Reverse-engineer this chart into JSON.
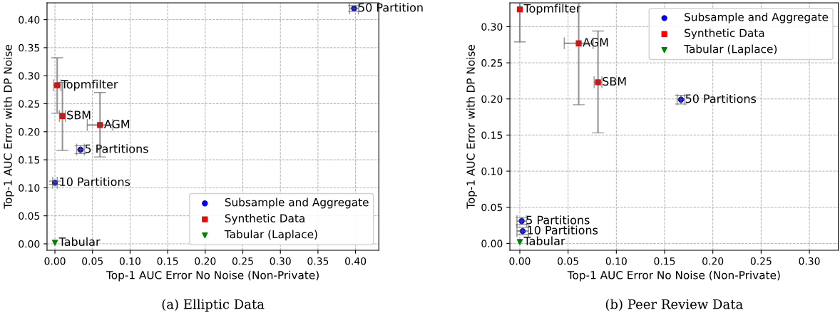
{
  "chart_data": [
    {
      "type": "scatter",
      "xlabel": "Top-1 AUC Error No Noise (Non-Private)",
      "ylabel": "Top-1 AUC Error with DP Noise",
      "grid": true,
      "legend": "bottom right",
      "xlim": [
        -0.0105,
        0.431
      ],
      "ylim": [
        -0.0115,
        0.43
      ],
      "xticks": [
        {
          "value": 0,
          "label": "0.00"
        },
        {
          "value": 0.05,
          "label": "0.05"
        },
        {
          "value": 0.1,
          "label": "0.10"
        },
        {
          "value": 0.15,
          "label": "0.15"
        },
        {
          "value": 0.2,
          "label": "0.20"
        },
        {
          "value": 0.25,
          "label": "0.25"
        },
        {
          "value": 0.3,
          "label": "0.30"
        },
        {
          "value": 0.35,
          "label": "0.35"
        },
        {
          "value": 0.4,
          "label": "0.40"
        }
      ],
      "yticks": [
        {
          "value": 0,
          "label": "0.00"
        },
        {
          "value": 0.05,
          "label": "0.05"
        },
        {
          "value": 0.1,
          "label": "0.10"
        },
        {
          "value": 0.15,
          "label": "0.15"
        },
        {
          "value": 0.2,
          "label": "0.20"
        },
        {
          "value": 0.25,
          "label": "0.25"
        },
        {
          "value": 0.3,
          "label": "0.30"
        },
        {
          "value": 0.35,
          "label": "0.35"
        },
        {
          "value": 0.4,
          "label": "0.40"
        }
      ],
      "series": [
        {
          "name": "Subsample and Aggregate",
          "color": "#0000ff",
          "marker": "circle",
          "x": [
            0.398,
            0.034,
            0.0
          ],
          "values": [
            0.42,
            0.168,
            0.109
          ],
          "errors": [
            0.005,
            0.007,
            0.003
          ],
          "xerrors": [
            0.006,
            0.005,
            0.003
          ]
        },
        {
          "name": "Synthetic Data",
          "color": "#ff0000",
          "marker": "square",
          "x": [
            0.003,
            0.01,
            0.06
          ],
          "values": [
            0.283,
            0.228,
            0.212
          ],
          "errors": [
            [
              0.233,
              0.332
            ],
            [
              0.167,
              0.288
            ],
            [
              0.155,
              0.27
            ]
          ],
          "xerrors": [
            0.005,
            0.004,
            0.017
          ]
        },
        {
          "name": "Tabular (Laplace)",
          "color": "#008000",
          "marker": "triangle",
          "x": [
            0.0
          ],
          "values": [
            0.002
          ],
          "errors": [
            null
          ],
          "xerrors": [
            null
          ]
        }
      ],
      "annotations": [
        {
          "text": "50 Partition",
          "x": 0.398,
          "y": 0.42
        },
        {
          "text": "5 Partitions",
          "x": 0.034,
          "y": 0.168
        },
        {
          "text": "10 Partitions",
          "x": 0.0,
          "y": 0.109
        },
        {
          "text": "Topmfilter",
          "x": 0.003,
          "y": 0.283
        },
        {
          "text": "SBM",
          "x": 0.01,
          "y": 0.228
        },
        {
          "text": "AGM",
          "x": 0.06,
          "y": 0.212
        },
        {
          "text": "Tabular",
          "x": 0.0,
          "y": 0.002
        },
        "(a) Elliptic Data"
      ]
    },
    {
      "type": "scatter",
      "xlabel": "Top-1 AUC Error No Noise (Non-Private)",
      "ylabel": "Top-1 AUC Error with DP Noise",
      "grid": true,
      "legend": "top right",
      "xlim": [
        -0.0103,
        0.33
      ],
      "ylim": [
        -0.0095,
        0.333
      ],
      "xticks": [
        {
          "value": 0,
          "label": "0.00"
        },
        {
          "value": 0.05,
          "label": "0.05"
        },
        {
          "value": 0.1,
          "label": "0.10"
        },
        {
          "value": 0.15,
          "label": "0.15"
        },
        {
          "value": 0.2,
          "label": "0.20"
        },
        {
          "value": 0.25,
          "label": "0.25"
        },
        {
          "value": 0.3,
          "label": "0.30"
        }
      ],
      "yticks": [
        {
          "value": 0,
          "label": "0.00"
        },
        {
          "value": 0.05,
          "label": "0.05"
        },
        {
          "value": 0.1,
          "label": "0.10"
        },
        {
          "value": 0.15,
          "label": "0.15"
        },
        {
          "value": 0.2,
          "label": "0.20"
        },
        {
          "value": 0.25,
          "label": "0.25"
        },
        {
          "value": 0.3,
          "label": "0.30"
        }
      ],
      "series": [
        {
          "name": "Subsample and Aggregate",
          "color": "#0000ff",
          "marker": "circle",
          "x": [
            0.167,
            0.002,
            0.003
          ],
          "values": [
            0.199,
            0.031,
            0.017
          ],
          "errors": [
            0.006,
            0.005,
            0.005
          ],
          "xerrors": [
            0.004,
            0.005,
            0.006
          ]
        },
        {
          "name": "Synthetic Data",
          "color": "#ff0000",
          "marker": "square",
          "x": [
            0.0,
            0.061,
            0.081
          ],
          "values": [
            0.324,
            0.277,
            0.223
          ],
          "errors": [
            [
              0.279,
              0.333
            ],
            [
              0.192,
              0.333
            ],
            [
              0.153,
              0.294
            ]
          ],
          "xerrors": [
            null,
            0.015,
            0.004
          ]
        },
        {
          "name": "Tabular (Laplace)",
          "color": "#008000",
          "marker": "triangle",
          "x": [
            0.0
          ],
          "values": [
            0.002
          ],
          "errors": [
            null
          ],
          "xerrors": [
            null
          ]
        }
      ],
      "annotations": [
        {
          "text": "Topmfilter",
          "x": 0.0,
          "y": 0.324
        },
        {
          "text": "AGM",
          "x": 0.061,
          "y": 0.277
        },
        {
          "text": "SBM",
          "x": 0.081,
          "y": 0.223
        },
        {
          "text": "50 Partitions",
          "x": 0.167,
          "y": 0.199
        },
        {
          "text": "5 Partitions",
          "x": 0.002,
          "y": 0.031
        },
        {
          "text": "10 Partitions",
          "x": 0.003,
          "y": 0.017
        },
        {
          "text": "Tabular",
          "x": 0.0,
          "y": 0.002
        },
        "(b) Peer Review Data"
      ]
    }
  ]
}
